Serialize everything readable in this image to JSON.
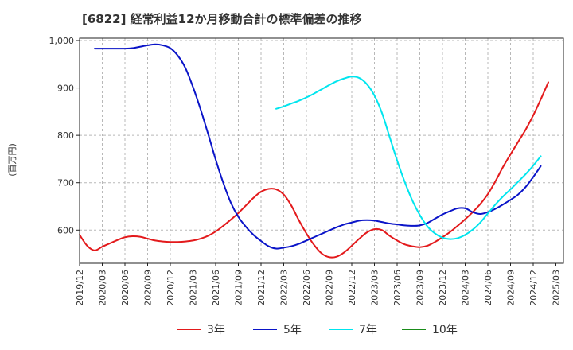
{
  "chart_data": {
    "type": "line",
    "title": "[6822]  経常利益12か月移動合計の標準偏差の推移",
    "ylabel": "(百万円)",
    "xlabel": "",
    "ylim": [
      530,
      1005
    ],
    "yticks": [
      600,
      700,
      800,
      900,
      1000
    ],
    "ytick_labels": [
      "600",
      "700",
      "800",
      "900",
      "1,000"
    ],
    "x_start": "2019/12",
    "x_step_months": 1,
    "xtick_labels": [
      "2019/12",
      "2020/03",
      "2020/06",
      "2020/09",
      "2020/12",
      "2021/03",
      "2021/06",
      "2021/09",
      "2021/12",
      "2022/03",
      "2022/06",
      "2022/09",
      "2022/12",
      "2023/03",
      "2023/06",
      "2023/09",
      "2023/12",
      "2024/03",
      "2024/06",
      "2024/09",
      "2024/12",
      "2025/03"
    ],
    "grid": true,
    "legend_position": "bottom",
    "series": [
      {
        "name": "3年",
        "color": "#e31a1c",
        "start_index": 0,
        "values": [
          590,
          567,
          557,
          565,
          572,
          579,
          585,
          587,
          586,
          582,
          578,
          576,
          575,
          575,
          576,
          578,
          582,
          588,
          597,
          609,
          622,
          636,
          652,
          668,
          681,
          687,
          686,
          675,
          652,
          621,
          593,
          569,
          551,
          543,
          544,
          553,
          567,
          582,
          595,
          602,
          600,
          588,
          578,
          570,
          566,
          564,
          567,
          575,
          585,
          596,
          609,
          623,
          638,
          655,
          676,
          703,
          733,
          760,
          786,
          812,
          842,
          876,
          912
        ]
      },
      {
        "name": "5年",
        "color": "#0a14c8",
        "start_index": 2,
        "values": [
          983,
          983,
          983,
          983,
          983,
          984,
          987,
          990,
          992,
          990,
          984,
          968,
          942,
          902,
          855,
          803,
          749,
          700,
          658,
          628,
          607,
          590,
          577,
          566,
          561,
          563,
          566,
          571,
          578,
          585,
          592,
          599,
          606,
          612,
          616,
          620,
          621,
          620,
          617,
          614,
          612,
          610,
          609,
          610,
          615,
          624,
          633,
          640,
          646,
          646,
          638,
          634,
          638,
          645,
          654,
          664,
          675,
          691,
          712,
          735
        ]
      },
      {
        "name": "7年",
        "color": "#00e5ee",
        "start_index": 26,
        "values": [
          856,
          861,
          867,
          873,
          880,
          888,
          897,
          906,
          914,
          920,
          924,
          921,
          908,
          884,
          847,
          797,
          747,
          702,
          663,
          632,
          608,
          593,
          584,
          581,
          583,
          590,
          601,
          616,
          635,
          654,
          671,
          686,
          702,
          718,
          736,
          756
        ]
      },
      {
        "name": "10年",
        "color": "#1a8c1a",
        "start_index": 0,
        "values": []
      }
    ]
  }
}
